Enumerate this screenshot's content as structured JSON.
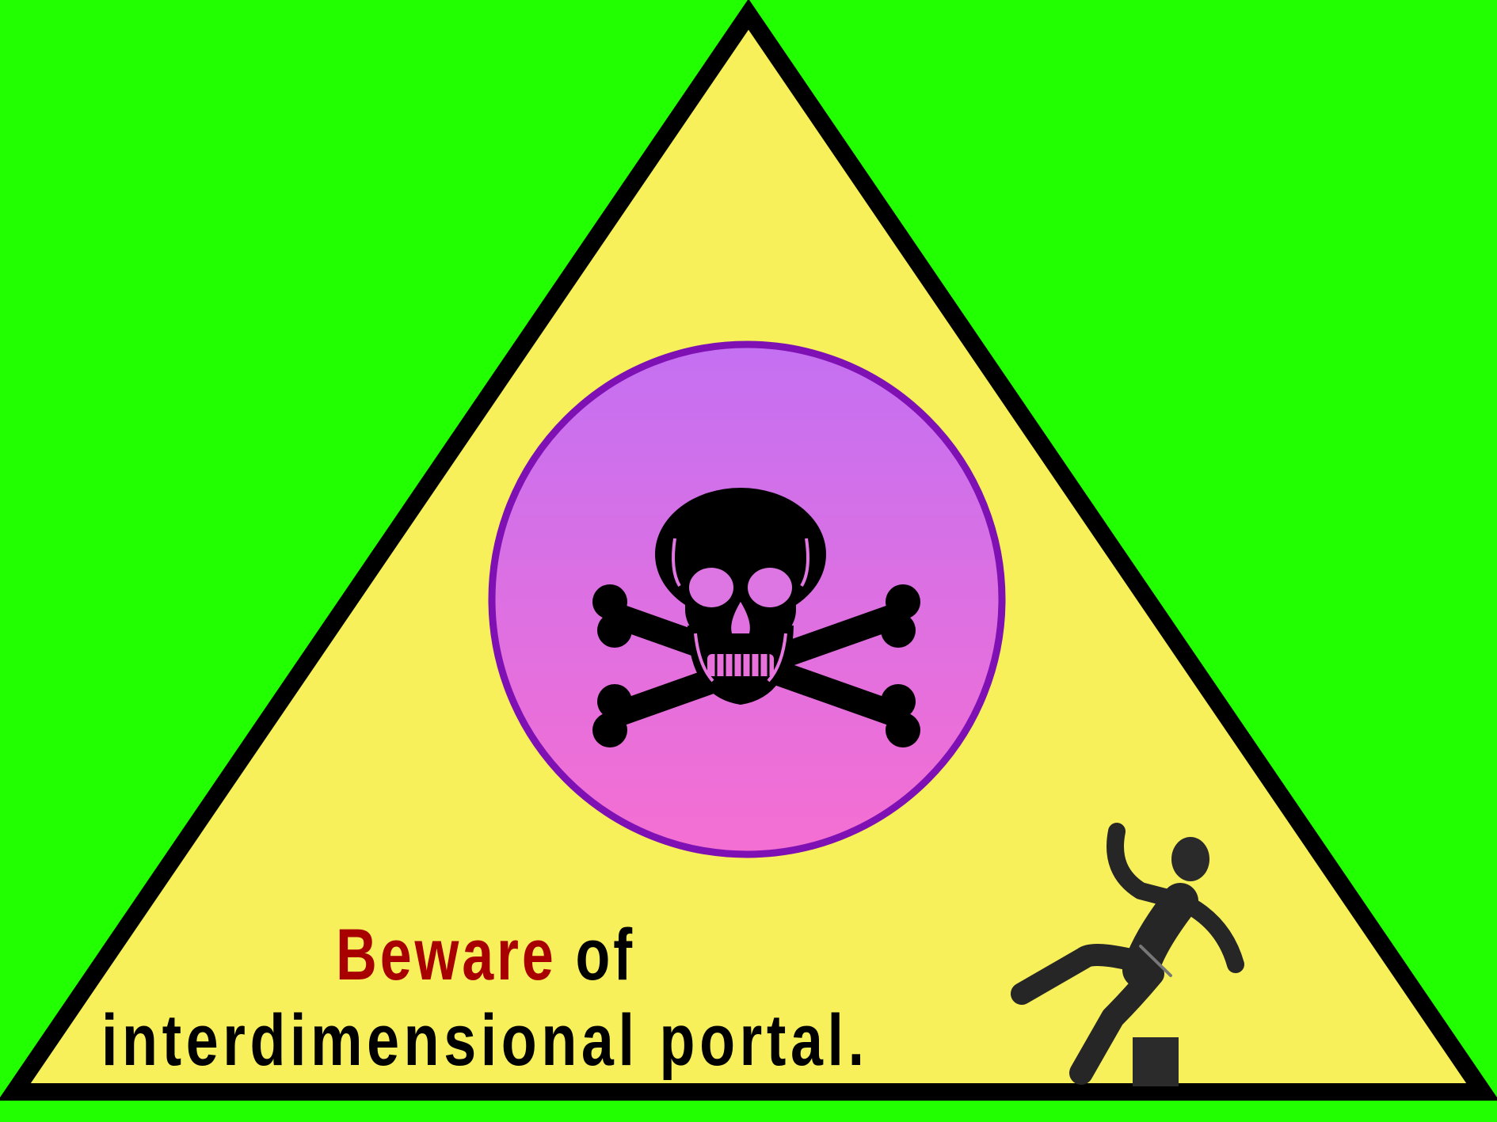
{
  "colors": {
    "background": "#22ff00",
    "triangle_fill": "#f7f05a",
    "triangle_stroke": "#000000",
    "portal_top": "#c470f2",
    "portal_bottom": "#f56fd2",
    "portal_ring": "#7f10b4",
    "emphasis_text": "#a80000",
    "body_text": "#000000"
  },
  "icons": {
    "center": "skull-crossbones-icon",
    "corner": "falling-person-icon"
  },
  "caption": {
    "line1_emphasis": "Beware",
    "line1_rest": " of",
    "line2": "interdimensional portal."
  }
}
